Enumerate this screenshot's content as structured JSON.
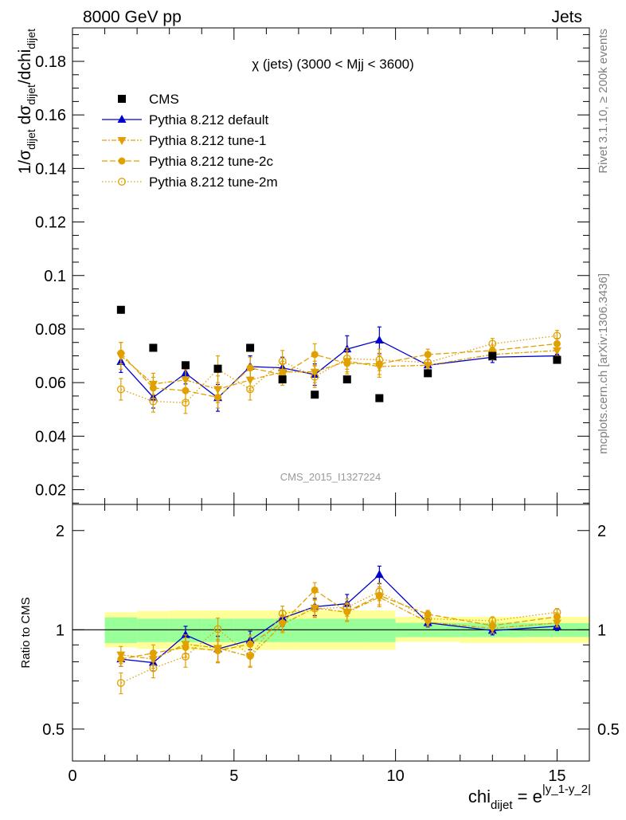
{
  "header": {
    "left": "8000 GeV pp",
    "right": "Jets"
  },
  "side_text": {
    "upper": "Rivet 3.1.10, ≥ 200k events",
    "lower": "mcplots.cern.ch [arXiv:1306.3436]"
  },
  "watermark": "CMS_2015_I1327224",
  "chart_data": [
    {
      "type": "line",
      "title": "χ (jets) (3000 < Mjj < 3600)",
      "xlim": [
        0,
        16
      ],
      "ylim": [
        0.0145,
        0.1925
      ],
      "yticks_major": [
        0.02,
        0.04,
        0.06,
        0.08,
        0.1,
        0.12,
        0.14,
        0.16,
        0.18
      ],
      "yticks_labels": [
        "0.02",
        "0.04",
        "0.06",
        "0.08",
        "0.1",
        "0.12",
        "0.14",
        "0.16",
        "0.18"
      ],
      "ylabel": {
        "p1": "1/σ",
        "s1": "dijet",
        "p2": " dσ",
        "s2": "dijet",
        "p3": "/dchi",
        "s3": "dijet"
      },
      "legend_position": "top-left",
      "legend": [
        "CMS",
        "Pythia 8.212 default",
        "Pythia 8.212 tune-1",
        "Pythia 8.212 tune-2c",
        "Pythia 8.212 tune-2m"
      ],
      "x": [
        1.5,
        2.5,
        3.5,
        4.5,
        5.5,
        6.5,
        7.5,
        8.5,
        9.5,
        11.0,
        13.0,
        15.0
      ],
      "data": {
        "name": "CMS",
        "color": "#000000",
        "marker": "square",
        "values": [
          0.0872,
          0.073,
          0.0665,
          0.0652,
          0.073,
          0.0612,
          0.0555,
          0.0612,
          0.0542,
          0.0635,
          0.07,
          0.0685
        ]
      },
      "series": [
        {
          "name": "Pythia 8.212 default",
          "color": "#0000cc",
          "dash": "",
          "marker": "triangle-up",
          "values": [
            0.0678,
            0.0545,
            0.0635,
            0.0543,
            0.066,
            0.0655,
            0.063,
            0.0725,
            0.0758,
            0.0665,
            0.0695,
            0.07
          ],
          "errors": [
            0.004,
            0.004,
            0.004,
            0.005,
            0.004,
            0.004,
            0.004,
            0.005,
            0.005,
            0.002,
            0.002,
            0.002
          ]
        },
        {
          "name": "Pythia 8.212 tune-1",
          "color": "#e0a000",
          "dash": "6,2,2,2",
          "marker": "triangle-down",
          "values": [
            0.07,
            0.0595,
            0.061,
            0.0575,
            0.061,
            0.064,
            0.064,
            0.068,
            0.066,
            0.0665,
            0.0705,
            0.072
          ],
          "errors": [
            0.005,
            0.004,
            0.004,
            0.005,
            0.004,
            0.004,
            0.004,
            0.004,
            0.004,
            0.002,
            0.002,
            0.002
          ]
        },
        {
          "name": "Pythia 8.212 tune-2c",
          "color": "#e0a000",
          "dash": "7,3",
          "marker": "circle",
          "values": [
            0.071,
            0.058,
            0.057,
            0.0545,
            0.0655,
            0.063,
            0.0705,
            0.0672,
            0.067,
            0.0705,
            0.072,
            0.0745
          ],
          "errors": [
            0.004,
            0.004,
            0.004,
            0.004,
            0.004,
            0.004,
            0.004,
            0.004,
            0.004,
            0.002,
            0.002,
            0.002
          ]
        },
        {
          "name": "Pythia 8.212 tune-2m",
          "color": "#e0a000",
          "dash": "1.5,2.5",
          "marker": "open-circle",
          "values": [
            0.0575,
            0.053,
            0.0525,
            0.065,
            0.0575,
            0.068,
            0.0622,
            0.069,
            0.0685,
            0.0675,
            0.0745,
            0.0775
          ],
          "errors": [
            0.004,
            0.004,
            0.004,
            0.005,
            0.004,
            0.004,
            0.004,
            0.004,
            0.004,
            0.002,
            0.002,
            0.002
          ]
        }
      ]
    },
    {
      "type": "line",
      "ylabel": "Ratio to CMS",
      "xlabel": {
        "main": "chi",
        "sub": "dijet",
        "mid": " = e",
        "sup": "|y_1-y_2|"
      },
      "xlim": [
        0,
        16
      ],
      "ylim": [
        0.4,
        2.4
      ],
      "yscale": "log",
      "xticks_major": [
        0,
        5,
        10,
        15
      ],
      "xticks_labels": [
        "0",
        "5",
        "10",
        "15"
      ],
      "yticks_labels": [
        "0.5",
        "1",
        "2"
      ],
      "yticks_values": [
        0.5,
        1,
        2
      ],
      "reference_line": 1,
      "bands": {
        "edges": [
          1,
          2,
          3,
          4,
          5,
          6,
          7,
          8,
          9,
          10,
          12,
          14,
          16
        ],
        "green_lo": [
          0.912,
          0.918,
          0.918,
          0.918,
          0.918,
          0.918,
          0.918,
          0.918,
          0.918,
          0.95,
          0.95,
          0.952
        ],
        "green_hi": [
          1.09,
          1.08,
          1.08,
          1.08,
          1.08,
          1.08,
          1.08,
          1.08,
          1.08,
          1.05,
          1.05,
          1.048
        ],
        "yellow_lo": [
          0.885,
          0.875,
          0.87,
          0.87,
          0.87,
          0.87,
          0.87,
          0.87,
          0.87,
          0.92,
          0.912,
          0.912
        ],
        "yellow_hi": [
          1.13,
          1.14,
          1.145,
          1.145,
          1.145,
          1.145,
          1.145,
          1.145,
          1.145,
          1.095,
          1.095,
          1.095
        ],
        "green_color": "#99ff99",
        "yellow_color": "#ffff99"
      },
      "series": [
        {
          "name": "Pythia 8.212 default",
          "values": [
            0.815,
            0.795,
            0.965,
            0.875,
            0.93,
            1.085,
            1.175,
            1.2,
            1.47,
            1.05,
            0.995,
            1.025
          ],
          "errors": [
            0.04,
            0.045,
            0.06,
            0.08,
            0.06,
            0.06,
            0.07,
            0.08,
            0.09,
            0.03,
            0.03,
            0.03
          ]
        },
        {
          "name": "Pythia 8.212 tune-1",
          "values": [
            0.84,
            0.815,
            0.905,
            0.88,
            0.83,
            1.04,
            1.165,
            1.13,
            1.255,
            1.055,
            1.01,
            1.05
          ],
          "errors": [
            0.05,
            0.05,
            0.06,
            0.08,
            0.06,
            0.06,
            0.07,
            0.07,
            0.08,
            0.03,
            0.03,
            0.03
          ]
        },
        {
          "name": "Pythia 8.212 tune-2c",
          "values": [
            0.815,
            0.85,
            0.885,
            0.865,
            0.905,
            1.05,
            1.32,
            1.135,
            1.27,
            1.115,
            1.03,
            1.095
          ],
          "errors": [
            0.04,
            0.05,
            0.06,
            0.07,
            0.06,
            0.06,
            0.07,
            0.07,
            0.08,
            0.03,
            0.03,
            0.03
          ]
        },
        {
          "name": "Pythia 8.212 tune-2m",
          "values": [
            0.69,
            0.765,
            0.83,
            1.005,
            0.835,
            1.12,
            1.16,
            1.17,
            1.305,
            1.08,
            1.065,
            1.13
          ],
          "errors": [
            0.05,
            0.05,
            0.06,
            0.08,
            0.06,
            0.06,
            0.07,
            0.07,
            0.08,
            0.03,
            0.03,
            0.03
          ]
        }
      ]
    }
  ]
}
